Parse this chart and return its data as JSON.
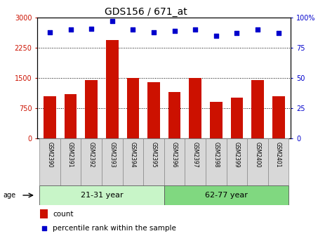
{
  "title": "GDS156 / 671_at",
  "samples": [
    "GSM2390",
    "GSM2391",
    "GSM2392",
    "GSM2393",
    "GSM2394",
    "GSM2395",
    "GSM2396",
    "GSM2397",
    "GSM2398",
    "GSM2399",
    "GSM2400",
    "GSM2401"
  ],
  "counts": [
    1050,
    1100,
    1450,
    2450,
    1500,
    1400,
    1150,
    1500,
    900,
    1000,
    1450,
    1050
  ],
  "percentiles": [
    88,
    90,
    91,
    97,
    90,
    88,
    89,
    90,
    85,
    87,
    90,
    87
  ],
  "bar_color": "#cc1100",
  "dot_color": "#0000cc",
  "ylim_left": [
    0,
    3000
  ],
  "ylim_right": [
    0,
    100
  ],
  "yticks_left": [
    0,
    750,
    1500,
    2250,
    3000
  ],
  "yticks_right": [
    0,
    25,
    50,
    75,
    100
  ],
  "groups": [
    {
      "label": "21-31 year",
      "start": 0,
      "end": 6,
      "color": "#c8f5c8"
    },
    {
      "label": "62-77 year",
      "start": 6,
      "end": 12,
      "color": "#80d880"
    }
  ],
  "age_label": "age",
  "legend_count": "count",
  "legend_percentile": "percentile rank within the sample",
  "background_color": "#ffffff",
  "title_fontsize": 10,
  "axis_fontsize": 7,
  "sample_fontsize": 5.5,
  "legend_fontsize": 7.5,
  "group_fontsize": 8
}
